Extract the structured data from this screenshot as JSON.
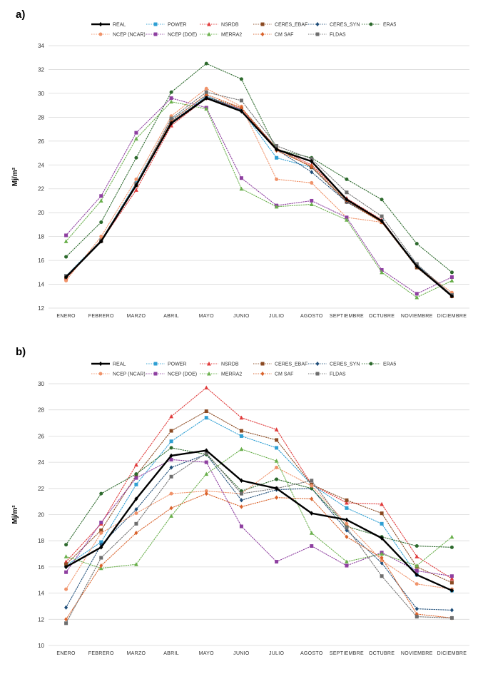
{
  "chart_data": [
    {
      "type": "line",
      "panel": "a)",
      "ylabel": "Mj/m²",
      "ylim": [
        12,
        34
      ],
      "yticks": [
        12,
        14,
        16,
        18,
        20,
        22,
        24,
        26,
        28,
        30,
        32,
        34
      ],
      "grid": true,
      "legend_position": "top",
      "categories": [
        "ENERO",
        "FEBRERO",
        "MARZO",
        "ABRIL",
        "MAYO",
        "JUNIO",
        "JULIO",
        "AGOSTO",
        "SEPTIEMBRE",
        "OCTUBRE",
        "NOVIEMBRE",
        "DICIEMBRE"
      ],
      "series": [
        {
          "name": "REAL",
          "color": "#000000",
          "marker": "diamond",
          "values": [
            14.6,
            17.6,
            22.3,
            27.5,
            29.6,
            28.5,
            25.3,
            24.3,
            21.1,
            19.3,
            15.5,
            13.0
          ]
        },
        {
          "name": "POWER",
          "color": "#2e9fd3",
          "marker": "square",
          "values": [
            14.7,
            17.7,
            22.5,
            27.8,
            29.8,
            28.6,
            24.6,
            23.8,
            21.0,
            19.3,
            15.6,
            13.1
          ]
        },
        {
          "name": "NSRDB",
          "color": "#e03a3a",
          "marker": "triangle",
          "values": [
            14.5,
            17.6,
            21.9,
            27.3,
            29.6,
            28.7,
            25.4,
            24.0,
            21.2,
            19.4,
            15.5,
            13.0
          ]
        },
        {
          "name": "CERES_EBAF",
          "color": "#8b4a22",
          "marker": "square",
          "values": [
            14.6,
            17.6,
            22.3,
            27.6,
            29.7,
            28.8,
            25.4,
            23.8,
            20.9,
            19.2,
            15.4,
            13.0
          ]
        },
        {
          "name": "CERES_SYN",
          "color": "#1f4e79",
          "marker": "diamond",
          "values": [
            14.6,
            17.6,
            22.3,
            27.6,
            29.7,
            28.6,
            25.3,
            23.4,
            20.9,
            19.3,
            15.6,
            13.1
          ]
        },
        {
          "name": "ERA5",
          "color": "#2d6a2d",
          "marker": "circle",
          "values": [
            16.3,
            19.2,
            24.6,
            30.1,
            32.5,
            31.2,
            25.3,
            24.6,
            22.8,
            21.1,
            17.4,
            15.0
          ]
        },
        {
          "name": "NCEP (NCAR)",
          "color": "#f0936a",
          "marker": "circle",
          "values": [
            14.3,
            18.0,
            22.8,
            28.1,
            30.4,
            28.9,
            22.8,
            22.5,
            19.6,
            19.2,
            15.5,
            13.3
          ]
        },
        {
          "name": "NCEP (DOE)",
          "color": "#8e3fa0",
          "marker": "square",
          "values": [
            18.1,
            21.4,
            26.7,
            29.6,
            28.8,
            22.9,
            20.6,
            21.0,
            19.6,
            15.2,
            13.2,
            14.6
          ]
        },
        {
          "name": "MERRA2",
          "color": "#6ab04c",
          "marker": "triangle",
          "values": [
            17.6,
            21.0,
            26.2,
            29.3,
            28.7,
            22.0,
            20.5,
            20.7,
            19.4,
            15.0,
            12.9,
            14.3
          ]
        },
        {
          "name": "CM SAF",
          "color": "#d9622b",
          "marker": "diamond",
          "values": [
            14.6,
            17.7,
            22.4,
            27.7,
            29.9,
            28.8,
            25.2,
            23.9,
            21.0,
            19.2,
            15.5,
            13.1
          ]
        },
        {
          "name": "FLDAS",
          "color": "#6e6e6e",
          "marker": "square",
          "values": [
            14.7,
            17.6,
            22.4,
            27.9,
            30.1,
            29.4,
            25.6,
            24.5,
            21.7,
            19.7,
            15.7,
            13.1
          ]
        }
      ]
    },
    {
      "type": "line",
      "panel": "b)",
      "ylabel": "Mj/m²",
      "ylim": [
        10,
        30
      ],
      "yticks": [
        10,
        12,
        14,
        16,
        18,
        20,
        22,
        24,
        26,
        28,
        30
      ],
      "grid": true,
      "legend_position": "top",
      "categories": [
        "ENERO",
        "FEBRERO",
        "MARZO",
        "ABRIL",
        "MAYO",
        "JUNIO",
        "JULIO",
        "AGOSTO",
        "SEPTIEMBRE",
        "OCTUBRE",
        "NOVIEMBRE",
        "DICIEMBRE"
      ],
      "series": [
        {
          "name": "REAL",
          "color": "#000000",
          "marker": "diamond",
          "values": [
            16.0,
            17.5,
            21.2,
            24.5,
            24.9,
            22.6,
            22.0,
            20.1,
            19.6,
            18.2,
            15.4,
            14.2
          ]
        },
        {
          "name": "POWER",
          "color": "#2e9fd3",
          "marker": "square",
          "values": [
            16.1,
            17.9,
            22.3,
            25.6,
            27.4,
            26.0,
            25.1,
            22.3,
            20.5,
            19.3,
            15.4,
            14.2
          ]
        },
        {
          "name": "NSRDB",
          "color": "#e03a3a",
          "marker": "triangle",
          "values": [
            16.4,
            19.3,
            23.8,
            27.5,
            29.7,
            27.4,
            26.5,
            22.3,
            20.9,
            20.8,
            16.8,
            15.1
          ]
        },
        {
          "name": "CERES_EBAF",
          "color": "#8b4a22",
          "marker": "square",
          "values": [
            16.2,
            18.8,
            23.0,
            26.4,
            27.9,
            26.4,
            25.7,
            22.3,
            21.1,
            20.1,
            16.0,
            14.8
          ]
        },
        {
          "name": "CERES_SYN",
          "color": "#1f4e79",
          "marker": "diamond",
          "values": [
            12.9,
            17.7,
            20.4,
            23.6,
            24.6,
            21.1,
            21.9,
            22.0,
            18.8,
            16.3,
            12.8,
            12.7
          ]
        },
        {
          "name": "ERA5",
          "color": "#2d6a2d",
          "marker": "circle",
          "values": [
            17.7,
            21.6,
            23.1,
            25.1,
            24.6,
            21.8,
            22.7,
            22.0,
            19.1,
            18.3,
            17.6,
            17.5
          ]
        },
        {
          "name": "NCEP (NCAR)",
          "color": "#f0936a",
          "marker": "circle",
          "values": [
            14.3,
            18.6,
            20.1,
            21.6,
            21.8,
            21.6,
            23.6,
            22.2,
            19.3,
            16.5,
            14.7,
            14.3
          ]
        },
        {
          "name": "NCEP (DOE)",
          "color": "#8e3fa0",
          "marker": "square",
          "values": [
            15.6,
            19.4,
            22.8,
            24.2,
            24.0,
            19.1,
            16.4,
            17.6,
            16.1,
            17.1,
            15.7,
            15.3
          ]
        },
        {
          "name": "MERRA2",
          "color": "#6ab04c",
          "marker": "triangle",
          "values": [
            16.8,
            15.9,
            16.2,
            19.9,
            23.1,
            25.0,
            24.1,
            18.6,
            16.4,
            17.0,
            16.1,
            18.3
          ]
        },
        {
          "name": "CM SAF",
          "color": "#d9622b",
          "marker": "diamond",
          "values": [
            12.0,
            16.1,
            18.6,
            20.5,
            21.6,
            20.6,
            21.3,
            21.2,
            18.3,
            16.7,
            12.4,
            12.1
          ]
        },
        {
          "name": "FLDAS",
          "color": "#6e6e6e",
          "marker": "square",
          "values": [
            11.7,
            16.7,
            19.3,
            22.9,
            24.7,
            21.6,
            22.0,
            22.6,
            19.0,
            15.3,
            12.2,
            12.1
          ]
        }
      ]
    }
  ]
}
